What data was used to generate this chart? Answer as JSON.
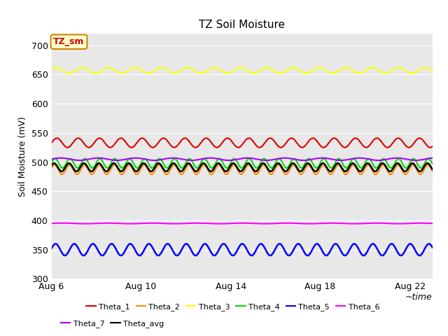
{
  "title": "TZ Soil Moisture",
  "ylabel": "Soil Moisture (mV)",
  "xlabel": "~time",
  "ylim": [
    300,
    720
  ],
  "yticks": [
    300,
    350,
    400,
    450,
    500,
    550,
    600,
    650,
    700
  ],
  "xtick_days": [
    0,
    4,
    8,
    12,
    16
  ],
  "xtick_labels": [
    "Aug 6",
    "Aug 10",
    "Aug 14",
    "Aug 18",
    "Aug 22"
  ],
  "n_days": 17,
  "bg_color": "#e8e8e8",
  "fig_bg": "#ffffff",
  "series": [
    {
      "name": "Theta_1",
      "color": "#dd0000",
      "base": 533,
      "amp": 8,
      "freq": 1.05,
      "phase": 0.0,
      "lw": 1.5
    },
    {
      "name": "Theta_2",
      "color": "#ff8800",
      "base": 487,
      "amp": 8,
      "freq": 1.5,
      "phase": 0.3,
      "lw": 1.5
    },
    {
      "name": "Theta_3",
      "color": "#ffff00",
      "base": 657,
      "amp": 5,
      "freq": 0.85,
      "phase": 0.5,
      "lw": 1.5
    },
    {
      "name": "Theta_4",
      "color": "#00dd00",
      "base": 498,
      "amp": 8,
      "freq": 1.5,
      "phase": 0.1,
      "lw": 1.5
    },
    {
      "name": "Theta_5",
      "color": "#0000ff",
      "base": 350,
      "amp": 10,
      "freq": 1.2,
      "phase": 0.2,
      "lw": 1.8
    },
    {
      "name": "Theta_6",
      "color": "#ff00ff",
      "base": 395,
      "amp": 0.5,
      "freq": 0.5,
      "phase": 0.0,
      "lw": 1.5
    },
    {
      "name": "Theta_7",
      "color": "#aa00ff",
      "base": 505,
      "amp": 2,
      "freq": 0.6,
      "phase": 0.0,
      "lw": 1.5
    },
    {
      "name": "Theta_avg",
      "color": "#000000",
      "base": 491,
      "amp": 7,
      "freq": 1.5,
      "phase": 0.5,
      "lw": 1.8
    }
  ],
  "legend_label": "TZ_sm",
  "legend_box_facecolor": "#ffffcc",
  "legend_box_textcolor": "#cc0000",
  "legend_box_edgecolor": "#cc8800"
}
